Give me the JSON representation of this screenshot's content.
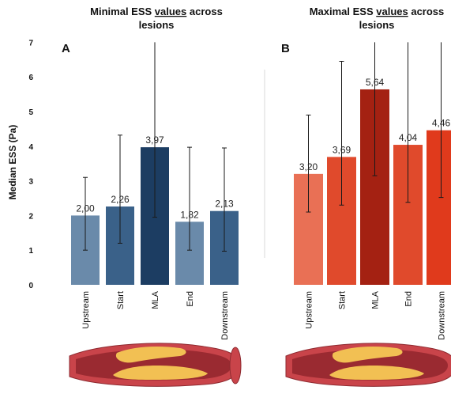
{
  "chart_data": [
    {
      "type": "bar",
      "panel_label": "A",
      "title_line1_pre": "Minimal ESS ",
      "title_line1_underlined": "values",
      "title_line1_post": " across",
      "title_line2": "lesions",
      "ylabel": "Median ESS (Pa)",
      "ylim": [
        0,
        7
      ],
      "yticks": [
        "0",
        "1",
        "2",
        "3",
        "4",
        "5",
        "6",
        "7"
      ],
      "categories": [
        "Upstream",
        "Start",
        "MLA",
        "End",
        "Downstream"
      ],
      "values": [
        2.0,
        2.26,
        3.97,
        1.82,
        2.13
      ],
      "value_labels": [
        "2,00",
        "2,26",
        "3,97",
        "1,82",
        "2,13"
      ],
      "error_low": [
        1.0,
        1.2,
        1.95,
        1.0,
        0.97
      ],
      "error_high": [
        3.1,
        4.32,
        7.0,
        3.97,
        3.95
      ],
      "colors": [
        "#6a8aaa",
        "#3a6189",
        "#1c3d62",
        "#6a8aaa",
        "#3a6189"
      ],
      "grid": false
    },
    {
      "type": "bar",
      "panel_label": "B",
      "title_line1_pre": "Maximal ESS ",
      "title_line1_underlined": "values",
      "title_line1_post": " across",
      "title_line2": "lesions",
      "ylim": [
        0,
        7
      ],
      "categories": [
        "Upstream",
        "Start",
        "MLA",
        "End",
        "Downstream"
      ],
      "values": [
        3.2,
        3.69,
        5.64,
        4.04,
        4.46
      ],
      "value_labels": [
        "3,20",
        "3,69",
        "5,64",
        "4,04",
        "4,46"
      ],
      "error_low": [
        2.1,
        2.3,
        3.15,
        2.38,
        2.52
      ],
      "error_high": [
        4.9,
        6.45,
        7.0,
        7.0,
        7.0
      ],
      "colors": [
        "#e97055",
        "#e04a2c",
        "#a42112",
        "#e04a2c",
        "#e03a1c"
      ],
      "grid": false
    }
  ],
  "vessel_colors": {
    "wall": "#c9444a",
    "wall_dark": "#8e2a30",
    "lumen": "#9a2a31",
    "plaque": "#f2c053"
  }
}
